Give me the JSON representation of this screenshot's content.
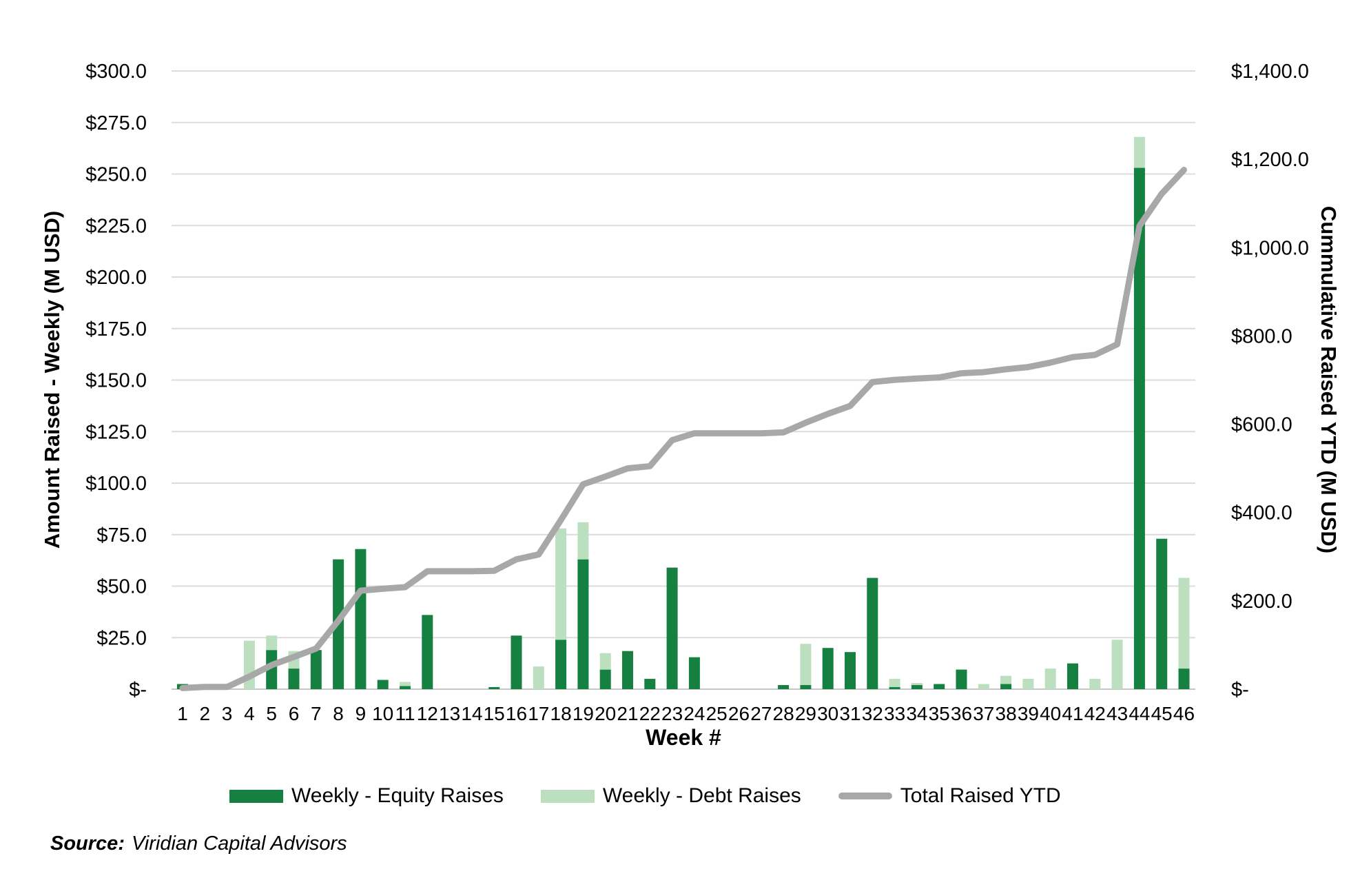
{
  "chart_data": {
    "type": "bar",
    "subtype": "stacked-bar-with-line-combo",
    "xlabel": "Week #",
    "ylabel_left": "Amount Raised - Weekly (M USD)",
    "ylabel_right": "Cummulative Raised YTD (M USD)",
    "ylim_left": [
      0,
      300
    ],
    "ylim_right": [
      0,
      1400
    ],
    "grid": "horizontal-only",
    "legend_position": "bottom",
    "categories": [
      "1",
      "2",
      "3",
      "4",
      "5",
      "6",
      "7",
      "8",
      "9",
      "10",
      "11",
      "12",
      "13",
      "14",
      "15",
      "16",
      "17",
      "18",
      "19",
      "20",
      "21",
      "22",
      "23",
      "24",
      "25",
      "26",
      "27",
      "28",
      "29",
      "30",
      "31",
      "32",
      "33",
      "34",
      "35",
      "36",
      "37",
      "38",
      "39",
      "40",
      "41",
      "42",
      "43",
      "44",
      "45",
      "46"
    ],
    "yticks_left": [
      "$300.0",
      "$275.0",
      "$250.0",
      "$225.0",
      "$200.0",
      "$175.0",
      "$150.0",
      "$125.0",
      "$100.0",
      "$75.0",
      "$50.0",
      "$25.0",
      "$-"
    ],
    "yticks_right": [
      "$1,400.0",
      "$1,200.0",
      "$1,000.0",
      "$800.0",
      "$600.0",
      "$400.0",
      "$200.0",
      "$-"
    ],
    "series": [
      {
        "name": "Weekly - Equity Raises",
        "type": "bar",
        "axis": "left",
        "color": "#15803f",
        "values": [
          2.5,
          2.5,
          0,
          0,
          19,
          10,
          19,
          63,
          68,
          4.5,
          1.5,
          36,
          0,
          0,
          1,
          26,
          0,
          24,
          63,
          9.5,
          18.5,
          5,
          59,
          15.5,
          0,
          0,
          0,
          2,
          2,
          20,
          18,
          54,
          1,
          2,
          2.5,
          9.5,
          0,
          2.5,
          0,
          0,
          12.5,
          0,
          0,
          253,
          73,
          10
        ]
      },
      {
        "name": "Weekly - Debt Raises",
        "type": "bar",
        "axis": "left",
        "color": "#bce0bf",
        "values": [
          0,
          0,
          0,
          23.5,
          7,
          8.5,
          0,
          0,
          0,
          0,
          2,
          0,
          0,
          0,
          0,
          0,
          11,
          54,
          18,
          8,
          0,
          0,
          0,
          0,
          0,
          0,
          0,
          0,
          20,
          0,
          0,
          0,
          4,
          1,
          0,
          0,
          2.5,
          4,
          5,
          10,
          0,
          5,
          24,
          15,
          0,
          44
        ]
      },
      {
        "name": "Total Raised YTD",
        "type": "line",
        "axis": "right",
        "color": "#a8a8a8",
        "values": [
          2.5,
          5,
          5,
          28.5,
          54.5,
          73,
          92,
          155,
          223,
          227.5,
          231,
          267,
          267,
          267,
          268,
          294,
          305,
          383,
          464,
          481.5,
          500,
          505,
          564,
          579.5,
          579.5,
          579.5,
          579.5,
          581.5,
          603.5,
          623.5,
          641.5,
          695.5,
          700.5,
          703.5,
          706,
          715.5,
          718,
          724.5,
          729.5,
          739.5,
          752,
          757,
          781,
          1049,
          1122,
          1176
        ]
      }
    ],
    "colors": {
      "gridline": "#dcdcdc",
      "axis_line": "#c6c6c6",
      "text": "#000000"
    }
  },
  "source": {
    "label": "Source:",
    "text": "Viridian Capital Advisors"
  }
}
